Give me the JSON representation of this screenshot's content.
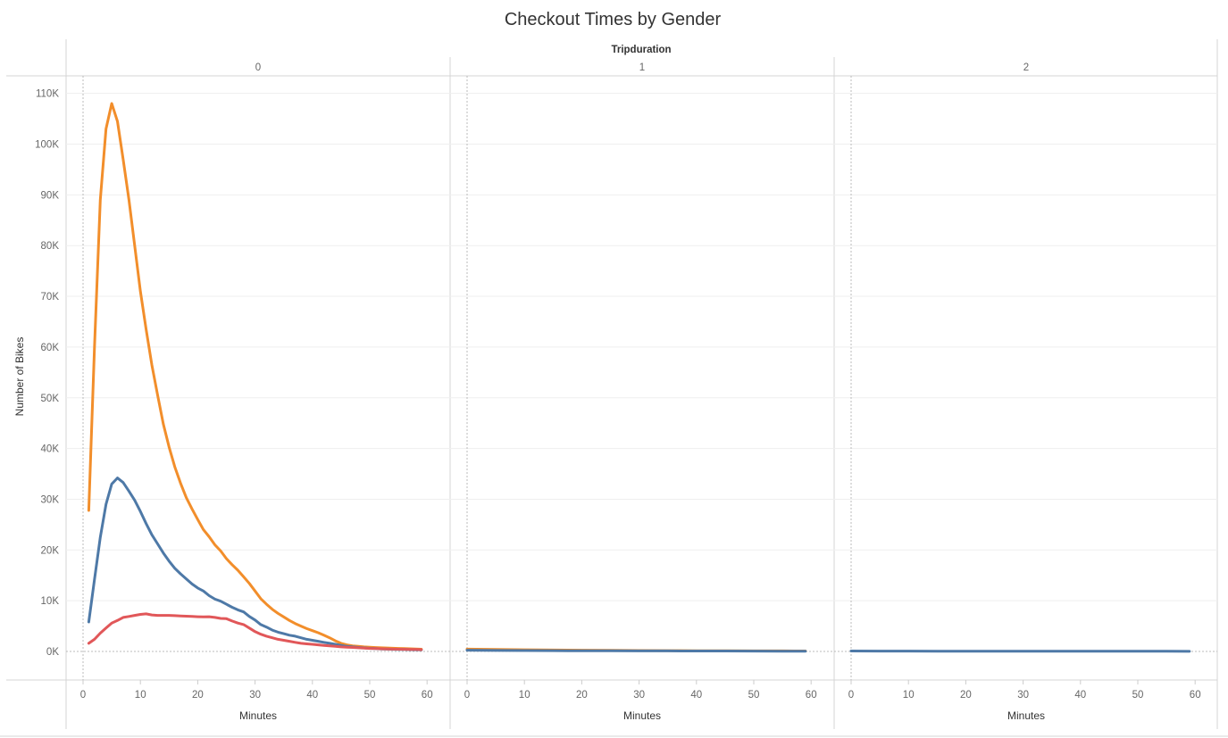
{
  "chart_data": {
    "type": "line",
    "title": "Checkout Times by Gender",
    "column_header": "Tripduration",
    "ylabel": "Number of Bikes",
    "xlabel": "Minutes",
    "xlim": [
      0,
      60
    ],
    "ylim": [
      0,
      113000
    ],
    "x_ticks": [
      "0",
      "10",
      "20",
      "30",
      "40",
      "50",
      "60"
    ],
    "y_ticks": [
      "0K",
      "10K",
      "20K",
      "30K",
      "40K",
      "50K",
      "60K",
      "70K",
      "80K",
      "90K",
      "100K",
      "110K"
    ],
    "grid": true,
    "colors": {
      "orange": "#f28e2b",
      "blue": "#4e79a7",
      "red": "#e15759"
    },
    "panels": [
      {
        "label": "0",
        "series": [
          {
            "color": "orange",
            "x": [
              1,
              2,
              3,
              4,
              5,
              6,
              7,
              8,
              9,
              10,
              11,
              12,
              13,
              14,
              15,
              16,
              17,
              18,
              19,
              20,
              21,
              22,
              23,
              24,
              25,
              26,
              27,
              28,
              29,
              30,
              31,
              32,
              33,
              34,
              35,
              36,
              37,
              38,
              39,
              40,
              41,
              42,
              43,
              44,
              45,
              46,
              47,
              48,
              49,
              50,
              51,
              52,
              53,
              54,
              55,
              56,
              57,
              58,
              59
            ],
            "y": [
              27800,
              60000,
              89000,
              103000,
              108000,
              104500,
              97000,
              89000,
              80000,
              71000,
              63500,
              56500,
              50500,
              44800,
              40300,
              36400,
              33200,
              30300,
              28100,
              26000,
              24000,
              22600,
              21000,
              19800,
              18300,
              17100,
              16000,
              14700,
              13400,
              11900,
              10400,
              9300,
              8300,
              7500,
              6800,
              6100,
              5500,
              5000,
              4500,
              4100,
              3700,
              3200,
              2700,
              2100,
              1600,
              1300,
              1100,
              1000,
              900,
              850,
              780,
              720,
              680,
              640,
              600,
              560,
              520,
              480,
              440
            ]
          },
          {
            "color": "blue",
            "x": [
              1,
              2,
              3,
              4,
              5,
              6,
              7,
              8,
              9,
              10,
              11,
              12,
              13,
              14,
              15,
              16,
              17,
              18,
              19,
              20,
              21,
              22,
              23,
              24,
              25,
              26,
              27,
              28,
              29,
              30,
              31,
              32,
              33,
              34,
              35,
              36,
              37,
              38,
              39,
              40,
              41,
              42,
              43,
              44,
              45,
              46,
              47,
              48,
              49,
              50,
              51,
              52,
              53,
              54,
              55,
              56,
              57,
              58,
              59
            ],
            "y": [
              5800,
              14200,
              22500,
              29000,
              33000,
              34200,
              33300,
              31600,
              29800,
              27600,
              25200,
              23000,
              21200,
              19400,
              17800,
              16400,
              15300,
              14300,
              13300,
              12500,
              11900,
              11000,
              10300,
              9900,
              9300,
              8700,
              8200,
              7800,
              6900,
              6200,
              5300,
              4800,
              4200,
              3800,
              3500,
              3200,
              3000,
              2700,
              2400,
              2200,
              2000,
              1800,
              1600,
              1400,
              1200,
              1000,
              900,
              800,
              700,
              620,
              560,
              500,
              460,
              420,
              400,
              380,
              360,
              340,
              320
            ]
          },
          {
            "color": "red",
            "x": [
              1,
              2,
              3,
              4,
              5,
              6,
              7,
              8,
              9,
              10,
              11,
              12,
              13,
              14,
              15,
              16,
              17,
              18,
              19,
              20,
              21,
              22,
              23,
              24,
              25,
              26,
              27,
              28,
              29,
              30,
              31,
              32,
              33,
              34,
              35,
              36,
              37,
              38,
              39,
              40,
              41,
              42,
              43,
              44,
              45,
              46,
              47,
              48,
              49,
              50,
              51,
              52,
              53,
              54,
              55,
              56,
              57,
              58,
              59
            ],
            "y": [
              1600,
              2400,
              3600,
              4600,
              5600,
              6100,
              6700,
              6900,
              7100,
              7300,
              7400,
              7200,
              7100,
              7100,
              7100,
              7050,
              7000,
              6950,
              6900,
              6850,
              6800,
              6850,
              6700,
              6500,
              6450,
              6000,
              5600,
              5300,
              4600,
              3900,
              3400,
              3000,
              2700,
              2400,
              2200,
              2000,
              1800,
              1600,
              1500,
              1400,
              1300,
              1200,
              1100,
              1000,
              900,
              850,
              800,
              720,
              660,
              600,
              560,
              520,
              490,
              460,
              440,
              420,
              400,
              380,
              360
            ]
          }
        ]
      },
      {
        "label": "1",
        "series": [
          {
            "color": "orange",
            "x": [
              0,
              5,
              10,
              15,
              20,
              25,
              30,
              35,
              40,
              45,
              50,
              55,
              59
            ],
            "y": [
              450,
              380,
              330,
              280,
              240,
              210,
              180,
              160,
              140,
              120,
              110,
              100,
              90
            ]
          },
          {
            "color": "blue",
            "x": [
              0,
              5,
              10,
              15,
              20,
              25,
              30,
              35,
              40,
              45,
              50,
              55,
              59
            ],
            "y": [
              250,
              200,
              170,
              150,
              130,
              120,
              110,
              100,
              90,
              80,
              70,
              60,
              50
            ]
          }
        ]
      },
      {
        "label": "2",
        "series": [
          {
            "color": "blue",
            "x": [
              0,
              5,
              10,
              15,
              20,
              25,
              30,
              35,
              40,
              45,
              50,
              55,
              59
            ],
            "y": [
              80,
              70,
              65,
              60,
              55,
              50,
              45,
              40,
              38,
              35,
              30,
              28,
              25
            ]
          }
        ]
      }
    ]
  }
}
